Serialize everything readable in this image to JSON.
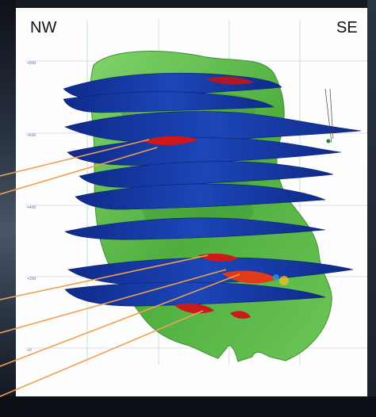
{
  "labels": {
    "northwest": "NW",
    "southeast": "SE"
  },
  "elevations": [
    "+800",
    "+600",
    "+400",
    "+200",
    "+0"
  ],
  "colors": {
    "panel_background": "#fdfdfd",
    "body_green": "#5cbf4a",
    "layer_blue": "#1a3fa8",
    "highlight_red": "#d01818",
    "callout_orange": "#f0a050",
    "grid_line_green": "#9bd59b",
    "grid_line_blue": "#b9bde6"
  },
  "icons": {
    "orange_callout_lines": "callout-line",
    "geological_body": "ore-body-3d-model"
  }
}
